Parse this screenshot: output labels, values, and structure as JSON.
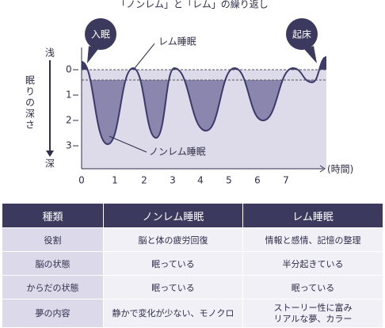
{
  "title": "「ノンレム」と「レム」の繰り返し",
  "diagram": {
    "y_axis_label": "眠りの深さ",
    "shallow": "浅",
    "deep": "深",
    "y_ticks": [
      "0",
      "1",
      "2",
      "3"
    ],
    "x_ticks": [
      "0",
      "1",
      "2",
      "3",
      "4",
      "5",
      "6",
      "7"
    ],
    "x_unit": "(時間)",
    "sleep_onset": "入眠",
    "wake": "起床",
    "rem_label": "レム睡眠",
    "nonrem_label": "ノンレム睡眠"
  },
  "table": {
    "header": [
      "種類",
      "ノンレム睡眠",
      "レム睡眠"
    ],
    "rows": [
      [
        "役割",
        "脳と体の疲労回復",
        "情報と感情、記憶の整理"
      ],
      [
        "脳の状態",
        "眠っている",
        "半分起きている"
      ],
      [
        "からだの状態",
        "眠っている",
        "眠っている"
      ],
      [
        "夢の内容",
        "静かで変化が少ない、モノクロ",
        "ストーリー性に富み\nリアルな夢、カラー"
      ]
    ]
  }
}
